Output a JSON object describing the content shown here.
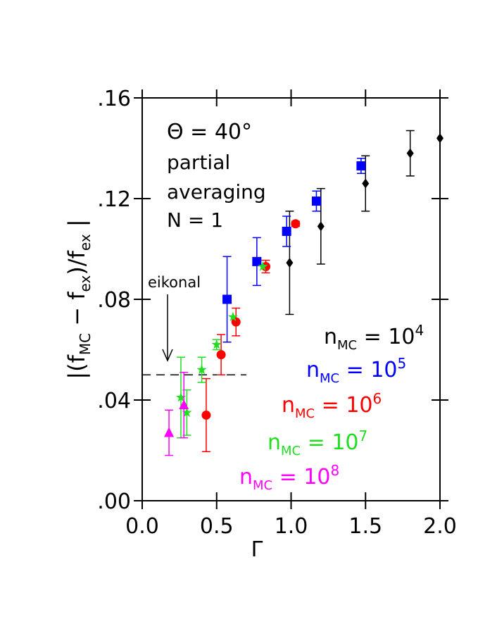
{
  "chart_data": {
    "type": "scatter",
    "xlabel": "Γ",
    "ylabel_parts": [
      "|(f",
      "MC",
      " − f",
      "ex",
      ")/f",
      "ex",
      " |"
    ],
    "annotations": [
      "Θ  =  40°",
      "partial",
      "averaging",
      "N  =  1",
      "eikonal"
    ],
    "xlim": [
      0,
      2
    ],
    "ylim": [
      0,
      0.16
    ],
    "xticks": [
      {
        "value": 0,
        "label": "0.0"
      },
      0.5,
      {
        "value": 1,
        "label": "1.0"
      },
      1.5,
      {
        "value": 2,
        "label": "2.0"
      }
    ],
    "yticks": [
      {
        "value": 0,
        "label": ".00"
      },
      {
        "value": 0.04,
        "label": ".04"
      },
      {
        "value": 0.08,
        "label": ".08"
      },
      {
        "value": 0.12,
        "label": ".12"
      },
      {
        "value": 0.16,
        "label": ".16"
      }
    ],
    "reference_line": {
      "y": 0.05,
      "x": [
        0,
        0.7
      ]
    },
    "series": [
      {
        "name": "n",
        "name_sub": "MC",
        "name_rest": "  =  10",
        "name_sup": "4",
        "color": "#000000",
        "marker": "diamond",
        "x": [
          0.99,
          1.2,
          1.5,
          1.8,
          2.0
        ],
        "values": [
          0.0945,
          0.109,
          0.126,
          0.138,
          0.144
        ],
        "errors": [
          0.0205,
          0.015,
          0.011,
          0.009,
          null
        ]
      },
      {
        "name": "n",
        "name_sub": "MC",
        "name_rest": "  =  10",
        "name_sup": "5",
        "color": "#0000ff",
        "marker": "square",
        "x": [
          0.57,
          0.77,
          0.97,
          1.17,
          1.47
        ],
        "values": [
          0.08,
          0.095,
          0.107,
          0.119,
          0.133
        ],
        "errors": [
          0.017,
          0.0095,
          0.006,
          0.004,
          0.003
        ]
      },
      {
        "name": "n",
        "name_sub": "MC",
        "name_rest": "  =  10",
        "name_sup": "6",
        "color": "#ff0000",
        "marker": "circle",
        "x": [
          0.43,
          0.53,
          0.63,
          0.83,
          1.03
        ],
        "values": [
          0.034,
          0.058,
          0.071,
          0.093,
          0.11
        ],
        "errors": [
          0.0145,
          0.008,
          0.0055,
          0.0025,
          0.001
        ]
      },
      {
        "name": "n",
        "name_sub": "MC",
        "name_rest": "  =  10",
        "name_sup": "7",
        "color": "#22dd22",
        "marker": "star",
        "x": [
          0.26,
          0.3,
          0.4,
          0.5,
          0.61,
          0.81
        ],
        "values": [
          0.041,
          0.035,
          0.052,
          0.062,
          0.073,
          0.093
        ],
        "errors": [
          0.016,
          0.009,
          0.005,
          0.002,
          null,
          null
        ]
      },
      {
        "name": "n",
        "name_sub": "MC",
        "name_rest": "  =  10",
        "name_sup": "8",
        "color": "#ff00ff",
        "marker": "triangle",
        "x": [
          0.18,
          0.28
        ],
        "values": [
          0.027,
          0.038
        ],
        "errors": [
          0.009,
          0.013
        ]
      }
    ]
  }
}
